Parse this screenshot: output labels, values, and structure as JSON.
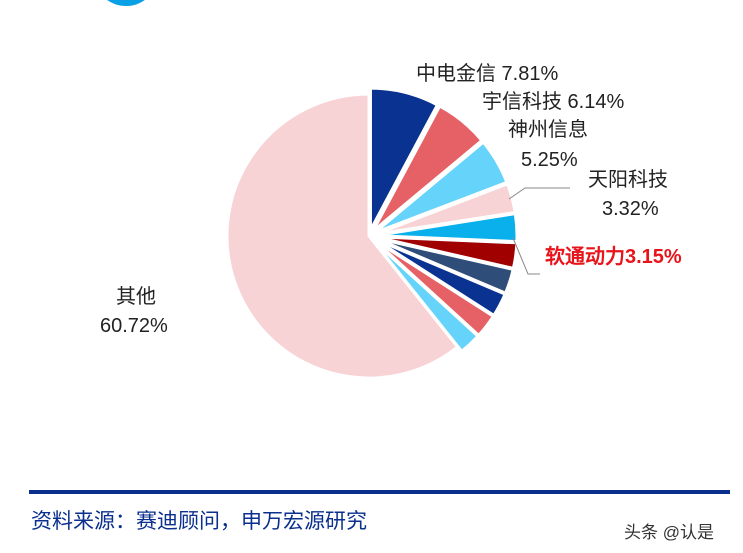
{
  "chart_data": {
    "type": "pie",
    "title": "",
    "start_angle_deg": 0,
    "direction": "clockwise",
    "slices": [
      {
        "name": "中电金信",
        "value": 7.81,
        "color": "#0a3290",
        "label": "中电金信 7.81%"
      },
      {
        "name": "宇信科技",
        "value": 6.14,
        "color": "#e56166",
        "label": "宇信科技 6.14%"
      },
      {
        "name": "神州信息",
        "value": 5.25,
        "color": "#66d4fa",
        "label": "神州信息 5.25%"
      },
      {
        "name": "天阳科技",
        "value": 3.32,
        "color": "#f7d3d5",
        "label": "天阳科技 3.32%"
      },
      {
        "name": "软通动力",
        "value": 3.15,
        "color": "#0ab0ec",
        "label": "软通动力3.15%",
        "highlight": true
      },
      {
        "name": "",
        "value": 2.9,
        "color": "#a00000",
        "label": ""
      },
      {
        "name": "",
        "value": 2.8,
        "color": "#2e4d78",
        "label": ""
      },
      {
        "name": "",
        "value": 2.7,
        "color": "#0a3290",
        "label": ""
      },
      {
        "name": "",
        "value": 2.7,
        "color": "#e56166",
        "label": ""
      },
      {
        "name": "",
        "value": 2.51,
        "color": "#66d4fa",
        "label": ""
      },
      {
        "name": "其他",
        "value": 60.72,
        "color": "#f7d3d5",
        "label": "其他 60.72%"
      }
    ]
  },
  "labels": {
    "zdjx": "中电金信 7.81%",
    "yxkj": "宇信科技 6.14%",
    "szxx_name": "神州信息",
    "szxx_val": "5.25%",
    "tykj_name": "天阳科技",
    "tykj_val": "3.32%",
    "rtdl": "软通动力3.15%",
    "qt_name": "其他",
    "qt_val": "60.72%"
  },
  "footer": {
    "source": "资料来源：赛迪顾问，申万宏源研究",
    "watermark": "头条 @认是"
  }
}
